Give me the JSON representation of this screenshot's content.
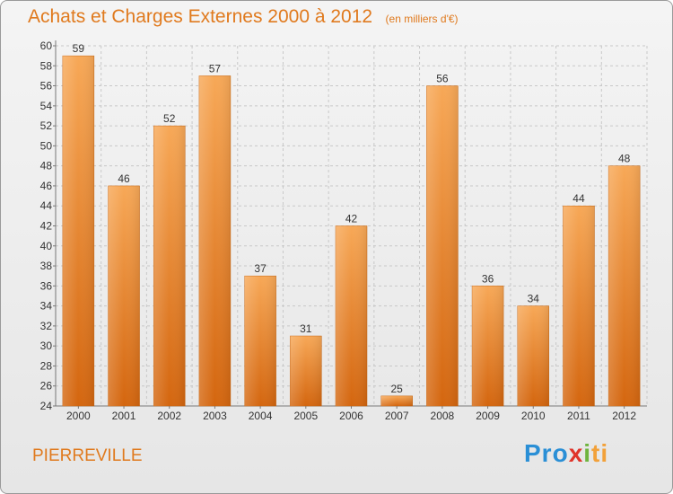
{
  "title": "Achats et Charges Externes 2000 à 2012",
  "unit": "(en milliers d'€)",
  "location": "PIERREVILLE",
  "logo": {
    "p1": "Pro",
    "p2": "x",
    "p3": "i",
    "p4": "ti"
  },
  "colors": {
    "bar": "#f08a2a",
    "text": "#e07a1e",
    "grid": "#c8c8c8"
  },
  "chart_data": {
    "type": "bar",
    "title": "Achats et Charges Externes 2000 à 2012",
    "subtitle": "(en milliers d'€)",
    "categories": [
      "2000",
      "2001",
      "2002",
      "2003",
      "2004",
      "2005",
      "2006",
      "2007",
      "2008",
      "2009",
      "2010",
      "2011",
      "2012"
    ],
    "values": [
      59,
      46,
      52,
      57,
      37,
      31,
      42,
      25,
      56,
      36,
      34,
      44,
      48
    ],
    "ylim": [
      24,
      60
    ],
    "yticks": [
      24,
      26,
      28,
      30,
      32,
      34,
      36,
      38,
      40,
      42,
      44,
      46,
      48,
      50,
      52,
      54,
      56,
      58,
      60
    ],
    "grid": true,
    "data_labels": true
  }
}
